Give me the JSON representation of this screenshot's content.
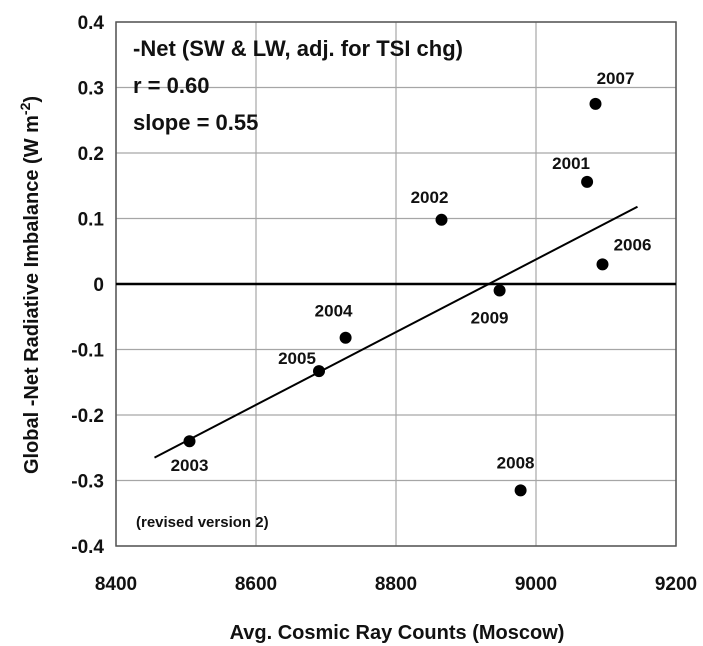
{
  "chart_data": {
    "type": "scatter",
    "title": "",
    "xlabel": "Avg. Cosmic Ray Counts (Moscow)",
    "ylabel_main": "Global -Net Radiative Imbalance (W m",
    "ylabel_sup": "-2",
    "ylabel_close": ")",
    "xlim": [
      8400,
      9200
    ],
    "ylim": [
      -0.4,
      0.4
    ],
    "xticks": [
      8400,
      8600,
      8800,
      9000,
      9200
    ],
    "yticks": [
      "-0.4",
      "-0.3",
      "-0.2",
      "-0.1",
      "0",
      "0.1",
      "0.2",
      "0.3",
      "0.4"
    ],
    "grid": true,
    "points": [
      {
        "year": "2003",
        "x": 8505,
        "y": -0.24
      },
      {
        "year": "2005",
        "x": 8690,
        "y": -0.133
      },
      {
        "year": "2004",
        "x": 8728,
        "y": -0.082
      },
      {
        "year": "2002",
        "x": 8865,
        "y": 0.098
      },
      {
        "year": "2009",
        "x": 8948,
        "y": -0.01
      },
      {
        "year": "2008",
        "x": 8978,
        "y": -0.315
      },
      {
        "year": "2001",
        "x": 9073,
        "y": 0.156
      },
      {
        "year": "2007",
        "x": 9085,
        "y": 0.275
      },
      {
        "year": "2006",
        "x": 9095,
        "y": 0.03
      }
    ],
    "trendline": {
      "x": [
        8455,
        9145
      ],
      "y": [
        -0.265,
        0.118
      ]
    },
    "annotations": [
      "-Net (SW & LW, adj. for TSI chg)",
      "r = 0.60",
      "slope = 0.55"
    ],
    "note": "(revised version 2)"
  }
}
